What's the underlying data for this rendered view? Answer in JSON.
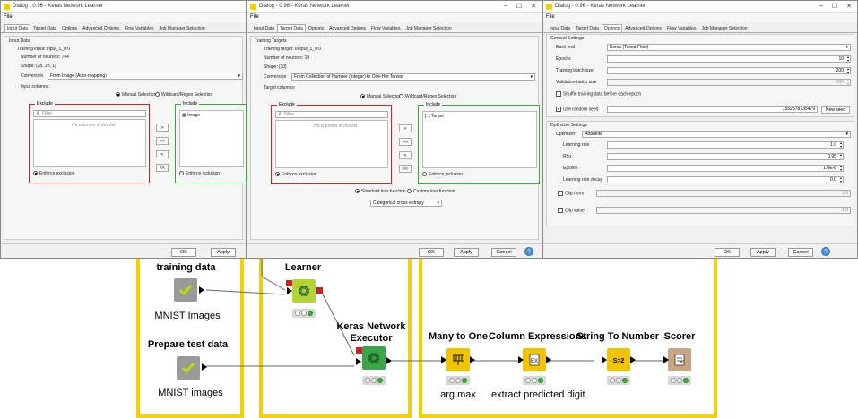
{
  "dialogs": {
    "title": "Dialog - 0:96 - Keras Network Learner",
    "menu_file": "File",
    "tabs": [
      "Input Data",
      "Target Data",
      "Options",
      "Advanced Options",
      "Flow Variables",
      "Job Manager Selection"
    ],
    "footer": {
      "ok": "OK",
      "apply": "Apply",
      "cancel": "Cancel",
      "help": "?"
    },
    "input": {
      "section": "Input Data",
      "training_input": "Training input: input_1_0:0",
      "neurons": "Number of neurons: 784",
      "shape": "Shape: [28, 28, 1]",
      "conversion_label": "Conversion",
      "conversion_value": "From Image (Auto-mapping)",
      "input_columns": "Input columns:",
      "manual": "Manual Selection",
      "wildcard": "Wildcard/Regex Selection",
      "exclude": "Exclude",
      "include": "Include",
      "filter_placeholder": "Filter",
      "no_column": "No columns in this list",
      "include_item": "Image",
      "enforce_exclusion": "Enforce exclusion",
      "enforce_inclusion": "Enforce inclusion",
      "btn_add": ">",
      "btn_add_all": ">>",
      "btn_remove": "<",
      "btn_remove_all": "<<"
    },
    "target": {
      "section": "Training Targets",
      "training_target": "Training target: output_1_0:0",
      "neurons": "Number of neurons: 10",
      "shape": "Shape: [10]",
      "conversion_label": "Conversion",
      "conversion_value": "From Collection of Number (integer) to One-Hot Tensor",
      "target_columns": "Target columns:",
      "manual": "Manual Selection",
      "wildcard": "Wildcard/Regex Selection",
      "exclude": "Exclude",
      "include": "Include",
      "filter_placeholder": "Filter",
      "no_column": "No columns in this list",
      "include_item": "Target",
      "enforce_exclusion": "Enforce exclusion",
      "enforce_inclusion": "Enforce inclusion",
      "standard_loss": "Standard loss function",
      "custom_loss": "Custom loss function",
      "loss_value": "Categorical cross entropy"
    },
    "options": {
      "general": "General Settings",
      "back_end_label": "Back end",
      "back_end_value": "Keras (TensorFlow)",
      "epochs_label": "Epochs",
      "epochs_value": "10",
      "train_batch_label": "Training batch size",
      "train_batch_value": "200",
      "val_batch_label": "Validation batch size",
      "val_batch_value": "200",
      "shuffle": "Shuffle training data before each epoch",
      "random_seed": "Use random seed",
      "seed_value": "1552578735479",
      "new_seed": "New seed",
      "optimizer_section": "Optimizer Settings",
      "optimizer_label": "Optimizer",
      "optimizer_value": "Adadelta",
      "lr_label": "Learning rate",
      "lr_value": "1.0",
      "rho_label": "Rho",
      "rho_value": "0.95",
      "eps_label": "Epsilon",
      "eps_value": "1.0E-8",
      "decay_label": "Learning rate decay",
      "decay_value": "0.0",
      "clip_norm": "Clip norm",
      "clip_norm_value": "1.0",
      "clip_value": "Clip value",
      "clip_value_value": "1.0"
    }
  },
  "workflow": {
    "training_data": "training data",
    "mnist_images_1": "MNIST Images",
    "prepare_test": "Prepare test data",
    "mnist_images_2": "MNIST images",
    "learner": "Learner",
    "executor_l1": "Keras Network",
    "executor_l2": "Executor",
    "many_to_one": "Many to One",
    "arg_max": "arg max",
    "column_expr": "Column Expressions",
    "extract_digit": "extract predicted digit",
    "string_to_number": "String To Number",
    "scorer": "Scorer",
    "colors": {
      "yellow": "#f5d000",
      "node_gray": "#9a9a9a",
      "node_green": "#b4d334",
      "node_dl": "#3aa54a",
      "node_manip": "#f2c400",
      "node_scorer": "#c9a586"
    }
  }
}
